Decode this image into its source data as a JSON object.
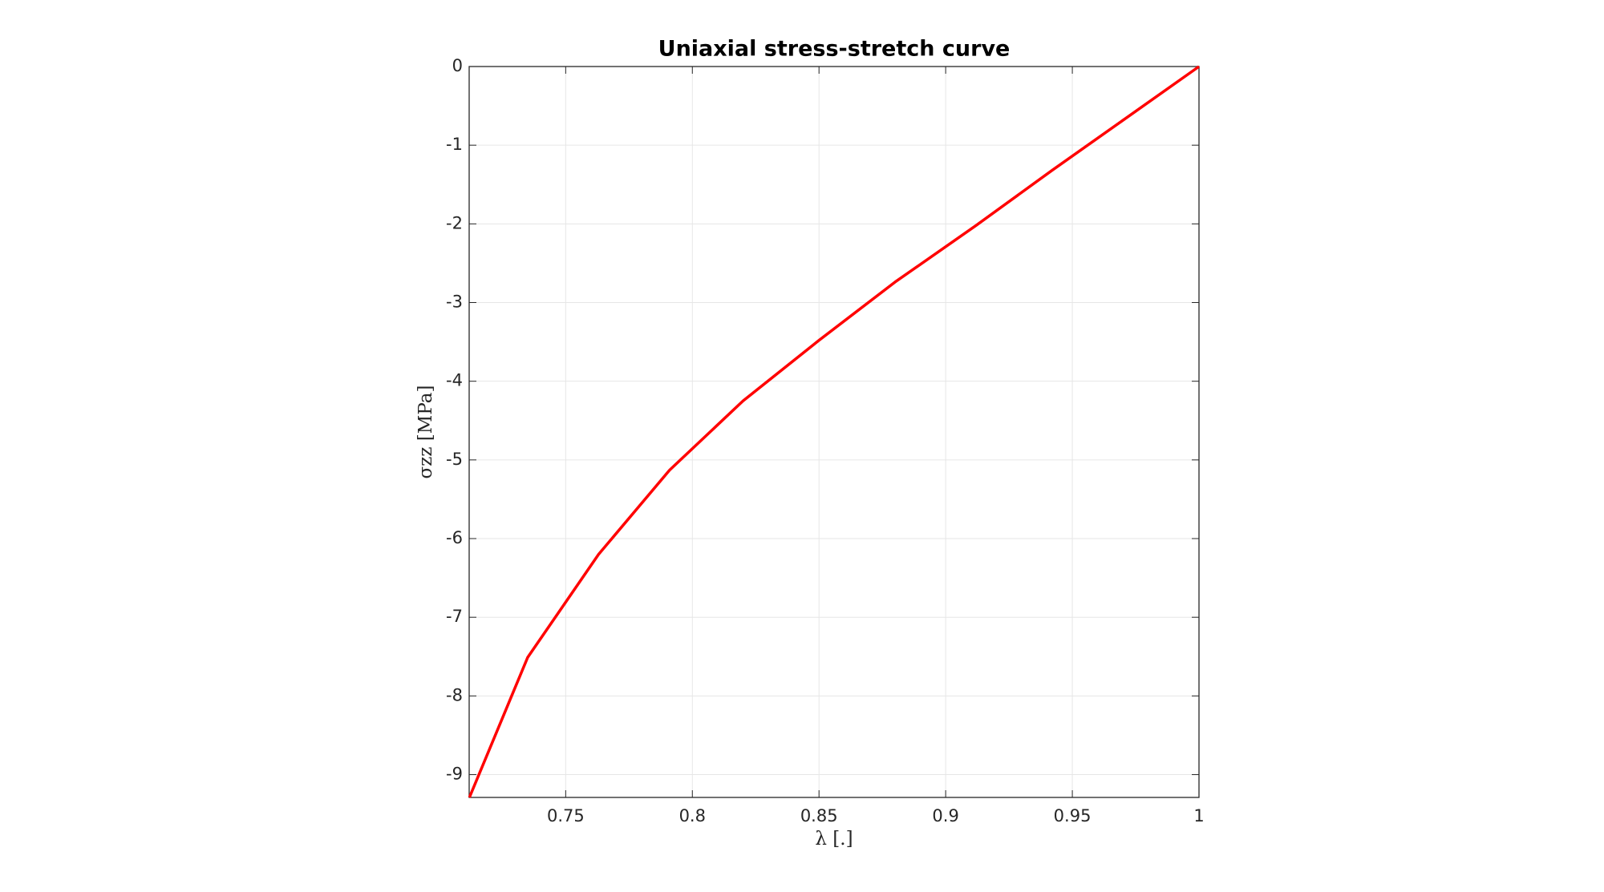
{
  "chart_data": {
    "type": "line",
    "title": "Uniaxial stress-stretch curve",
    "xlabel": "λ [.]",
    "ylabel": "σzz [MPa]",
    "x": [
      0.712,
      0.735,
      0.763,
      0.791,
      0.82,
      0.85,
      0.88,
      0.912,
      0.942,
      0.971,
      1
    ],
    "series": [
      {
        "color": "#ff0000",
        "values": [
          -9.29,
          -7.51,
          -6.2,
          -5.13,
          -4.25,
          -3.48,
          -2.74,
          -2.02,
          -1.32,
          -0.66,
          0
        ]
      }
    ],
    "xlim": [
      0.7119,
      1
    ],
    "ylim": [
      -9.29,
      0
    ],
    "xticks": [
      0.75,
      0.8,
      0.85,
      0.9,
      0.95,
      1
    ],
    "yticks": [
      0,
      -1,
      -2,
      -3,
      -4,
      -5,
      -6,
      -7,
      -8,
      -9
    ],
    "grid": true
  }
}
